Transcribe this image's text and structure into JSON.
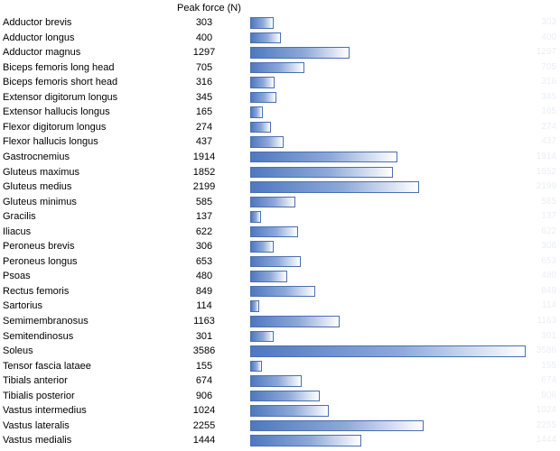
{
  "chart_data": {
    "type": "bar",
    "orientation": "horizontal",
    "column_header": "Peak force (N)",
    "categories": [
      "Adductor brevis",
      "Adductor longus",
      "Adductor magnus",
      "Biceps femoris long head",
      "Biceps femoris short head",
      "Extensor digitorum longus",
      "Extensor hallucis longus",
      "Flexor digitorum longus",
      "Flexor hallucis longus",
      "Gastrocnemius",
      "Gluteus maximus",
      "Gluteus medius",
      "Gluteus minimus",
      "Gracilis",
      "Iliacus",
      "Peroneus brevis",
      "Peroneus longus",
      "Psoas",
      "Rectus femoris",
      "Sartorius",
      "Semimembranosus",
      "Semitendinosus",
      "Soleus",
      "Tensor fascia lataee",
      "Tibials anterior",
      "Tibialis posterior",
      "Vastus intermedius",
      "Vastus lateralis",
      "Vastus medialis"
    ],
    "values": [
      303,
      400,
      1297,
      705,
      316,
      345,
      165,
      274,
      437,
      1914,
      1852,
      2199,
      585,
      137,
      622,
      306,
      653,
      480,
      849,
      114,
      1163,
      301,
      3586,
      155,
      674,
      906,
      1024,
      2255,
      1444
    ],
    "xlim": [
      0,
      3586
    ],
    "bar_color": "#4f78c0"
  }
}
